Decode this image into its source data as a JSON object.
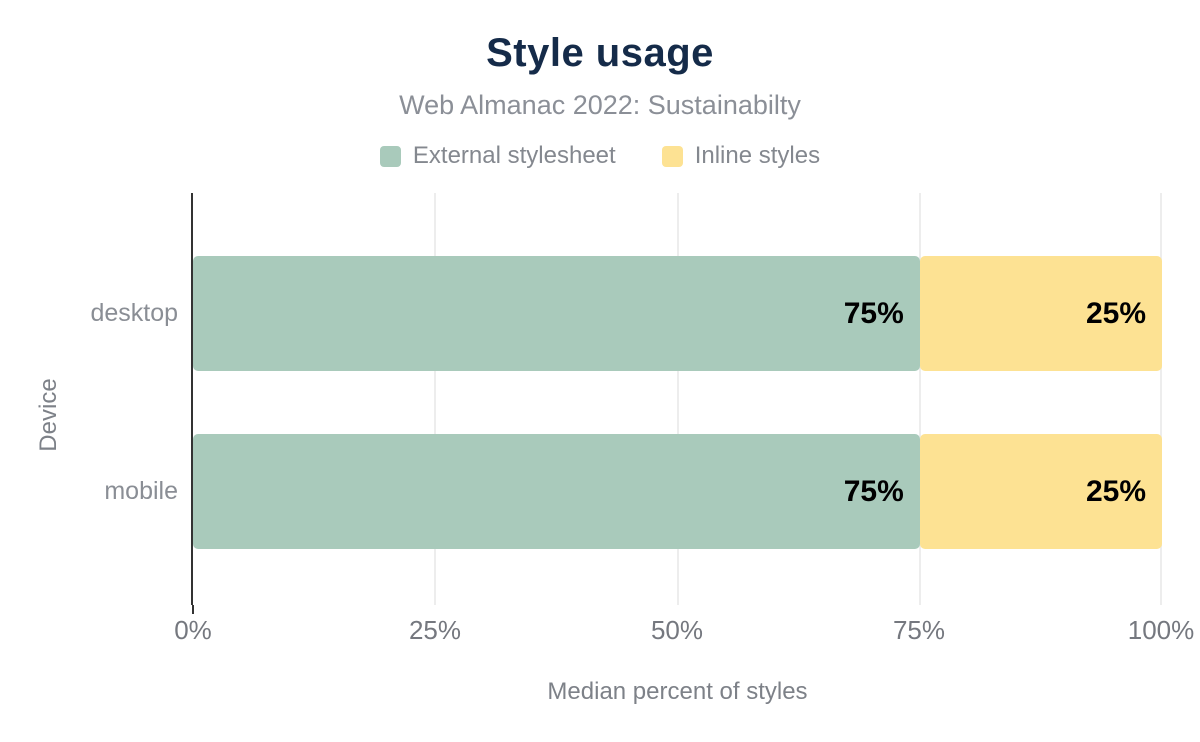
{
  "chart_data": {
    "type": "bar",
    "orientation": "horizontal",
    "stacked": true,
    "title": "Style usage",
    "subtitle": "Web Almanac 2022: Sustainabilty",
    "xlabel": "Median percent of styles",
    "ylabel": "Device",
    "categories": [
      "desktop",
      "mobile"
    ],
    "series": [
      {
        "name": "External stylesheet",
        "color": "#a9cabb",
        "values": [
          75,
          75
        ],
        "value_labels": [
          "75%",
          "75%"
        ]
      },
      {
        "name": "Inline styles",
        "color": "#fde293",
        "values": [
          25,
          25
        ],
        "value_labels": [
          "25%",
          "25%"
        ]
      }
    ],
    "xlim": [
      0,
      100
    ],
    "x_tick_labels": [
      "0%",
      "25%",
      "50%",
      "75%",
      "100%"
    ],
    "grid": "vertical-gridlines-at-25-50-75-100",
    "legend_position": "top",
    "colors": {
      "title_text": "#152b49",
      "muted_text": "#84888f",
      "tick_text": "#75787f",
      "bar_value_text": "#000000",
      "gridline": "#ededed",
      "axis_line": "#333333",
      "background": "#ffffff"
    }
  }
}
